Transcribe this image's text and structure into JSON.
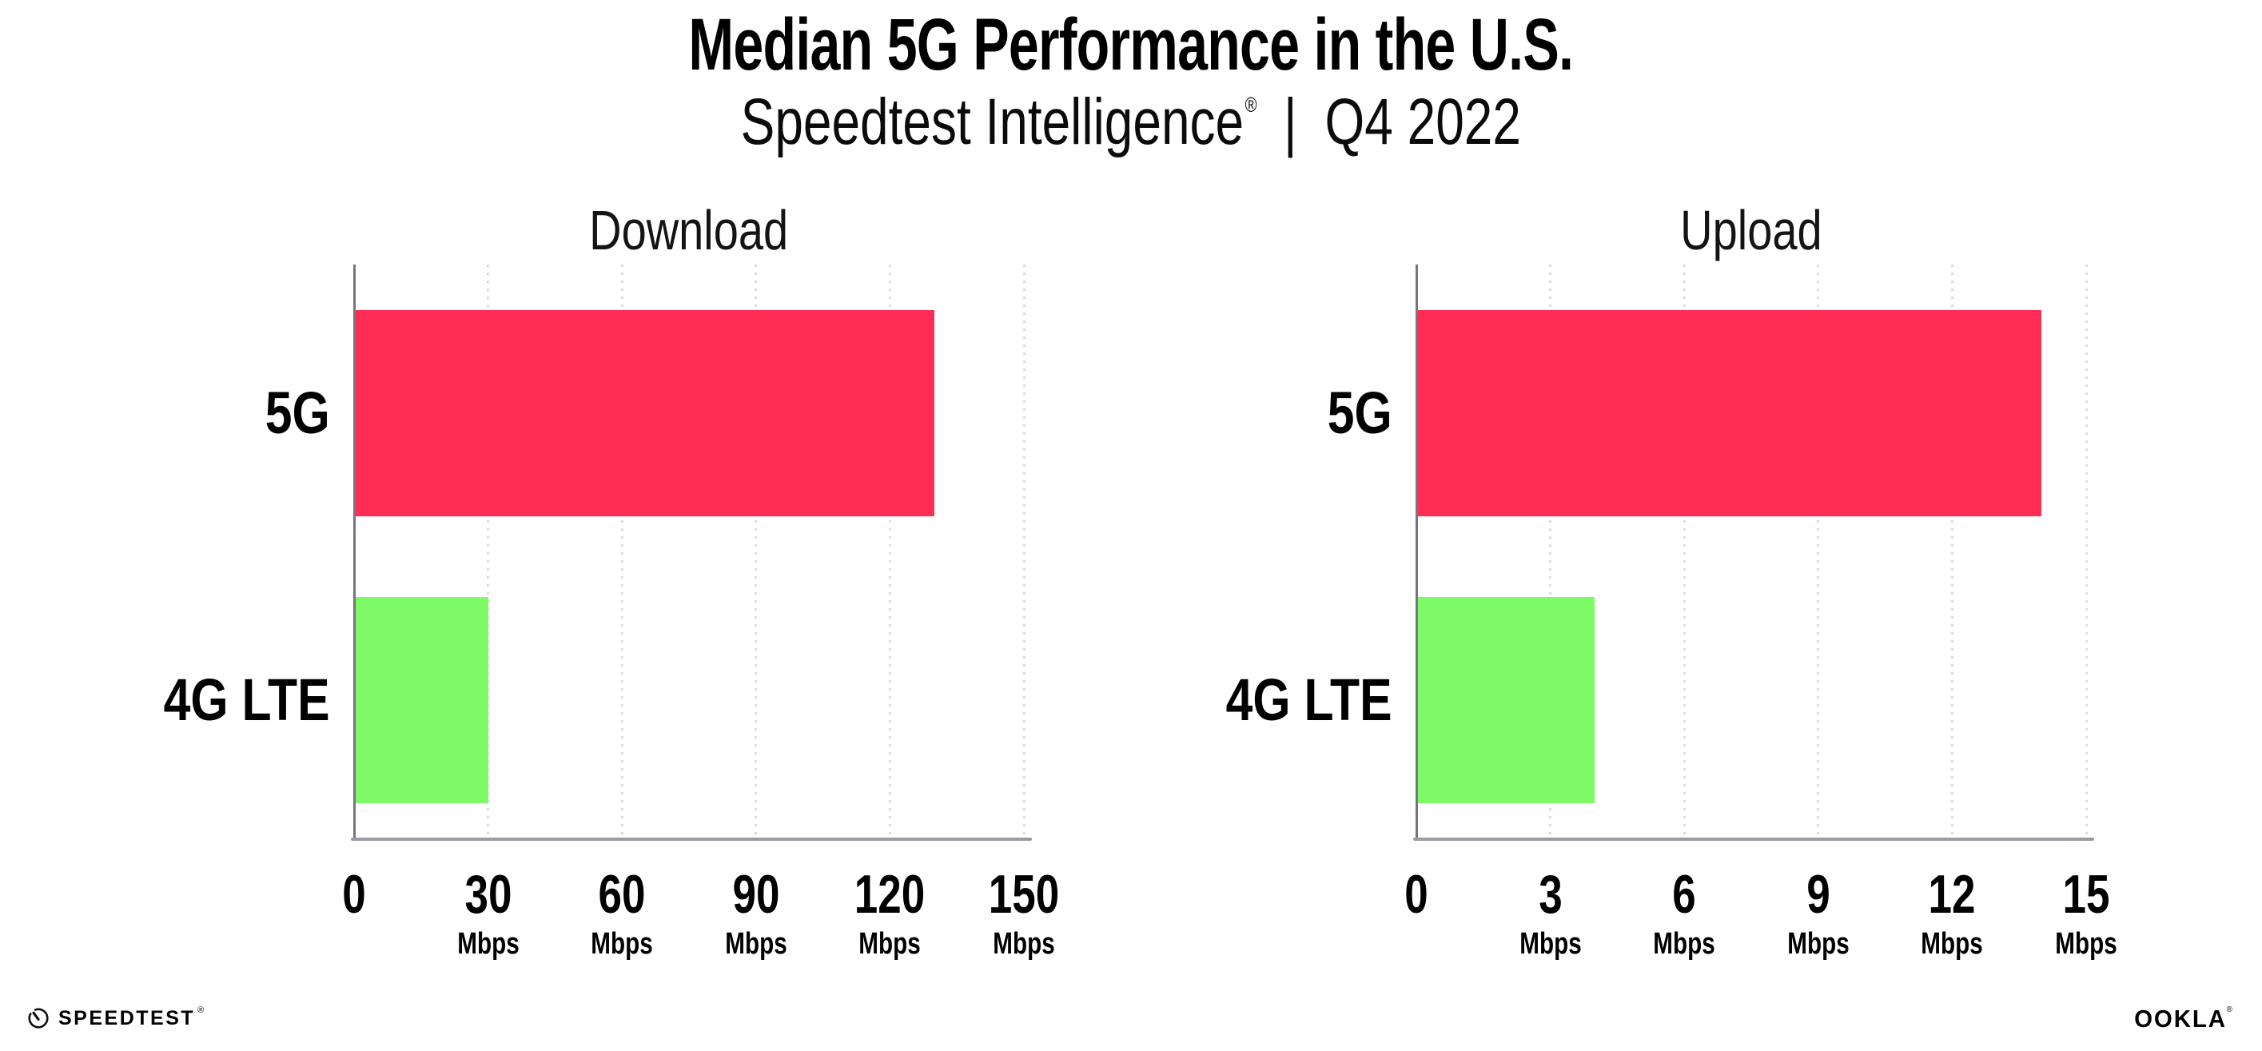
{
  "header": {
    "title": "Median 5G Performance in the U.S.",
    "subtitle": {
      "product": "Speedtest Intelligence",
      "registered_mark": "®",
      "separator": "|",
      "period": "Q4 2022"
    }
  },
  "chart_data": [
    {
      "type": "bar",
      "orientation": "horizontal",
      "title": "Download",
      "categories": [
        "5G",
        "4G LTE"
      ],
      "values": [
        130,
        30
      ],
      "unit": "Mbps",
      "xlim": [
        0,
        150
      ],
      "xticks": [
        0,
        30,
        60,
        90,
        120,
        150
      ],
      "bar_colors": [
        "#FF2D55",
        "#7DFA65"
      ],
      "grid": "dotted-vertical",
      "legend": "none"
    },
    {
      "type": "bar",
      "orientation": "horizontal",
      "title": "Upload",
      "categories": [
        "5G",
        "4G LTE"
      ],
      "values": [
        14,
        4
      ],
      "unit": "Mbps",
      "xlim": [
        0,
        15
      ],
      "xticks": [
        0,
        3,
        6,
        9,
        12,
        15
      ],
      "bar_colors": [
        "#FF2D55",
        "#7DFA65"
      ],
      "grid": "dotted-vertical",
      "legend": "none"
    }
  ],
  "footer": {
    "speedtest_wordmark": "SPEEDTEST",
    "speedtest_registered_mark": "®",
    "ookla_wordmark": "OOKLA",
    "ookla_registered_mark": "®"
  },
  "theme": {
    "background": "#FFFFFF",
    "text_color": "#000000",
    "color_5g": "#FF2D55",
    "color_4g_lte": "#7DFA65",
    "axis_color": "#9B9BA1",
    "gridline_color": "#D9DBE6"
  }
}
